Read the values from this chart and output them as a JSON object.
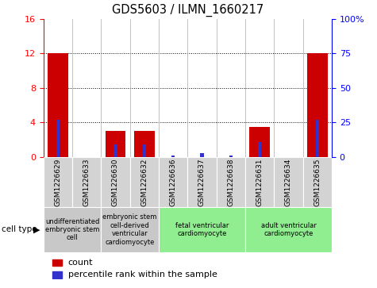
{
  "title": "GDS5603 / ILMN_1660217",
  "samples": [
    "GSM1226629",
    "GSM1226633",
    "GSM1226630",
    "GSM1226632",
    "GSM1226636",
    "GSM1226637",
    "GSM1226638",
    "GSM1226631",
    "GSM1226634",
    "GSM1226635"
  ],
  "count_values": [
    12,
    0,
    3,
    3,
    0,
    0,
    0,
    3.5,
    0,
    12
  ],
  "percentile_values": [
    27,
    0,
    9,
    9,
    1,
    3,
    1,
    11,
    0,
    27
  ],
  "ylim_left": [
    0,
    16
  ],
  "ylim_right": [
    0,
    100
  ],
  "yticks_left": [
    0,
    4,
    8,
    12,
    16
  ],
  "yticks_right": [
    0,
    25,
    50,
    75,
    100
  ],
  "ytick_labels_right": [
    "0",
    "25",
    "50",
    "75",
    "100%"
  ],
  "cell_types": [
    {
      "label": "undifferentiated\nembryonic stem\ncell",
      "span": [
        0,
        2
      ],
      "color": "#c8c8c8"
    },
    {
      "label": "embryonic stem\ncell-derived\nventricular\ncardiomyocyte",
      "span": [
        2,
        4
      ],
      "color": "#c8c8c8"
    },
    {
      "label": "fetal ventricular\ncardiomyocyte",
      "span": [
        4,
        7
      ],
      "color": "#90ee90"
    },
    {
      "label": "adult ventricular\ncardiomyocyte",
      "span": [
        7,
        10
      ],
      "color": "#90ee90"
    }
  ],
  "bar_color_red": "#cc0000",
  "bar_color_blue": "#3333cc",
  "bg_color": "#ffffff",
  "sample_row_color": "#d3d3d3",
  "legend_count_label": "count",
  "legend_percentile_label": "percentile rank within the sample",
  "n_samples": 10
}
